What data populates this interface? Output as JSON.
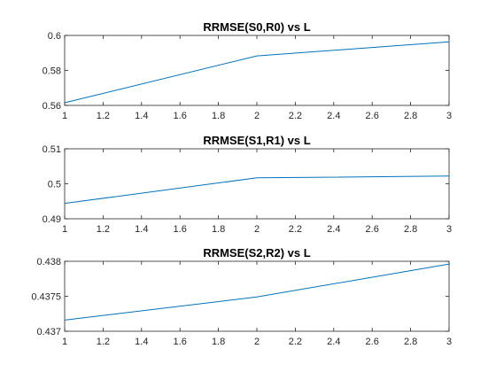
{
  "chart_data": [
    {
      "type": "line",
      "title": "RRMSE(S0,R0) vs L",
      "x": [
        1,
        2,
        3
      ],
      "series": [
        {
          "values": [
            0.5615,
            0.5883,
            0.5963
          ]
        }
      ],
      "xlim": [
        1,
        3
      ],
      "ylim": [
        0.56,
        0.6
      ],
      "xticks": [
        1,
        1.2,
        1.4,
        1.6,
        1.8,
        2,
        2.2,
        2.4,
        2.6,
        2.8,
        3
      ],
      "yticks": [
        0.56,
        0.58,
        0.6
      ],
      "ytick_labels": [
        "0.56",
        "0.58",
        "0.6"
      ],
      "grid": false,
      "line_color": "#0072BD"
    },
    {
      "type": "line",
      "title": "RRMSE(S1,R1) vs L",
      "x": [
        1,
        2,
        3
      ],
      "series": [
        {
          "values": [
            0.4944,
            0.5017,
            0.5022
          ]
        }
      ],
      "xlim": [
        1,
        3
      ],
      "ylim": [
        0.49,
        0.51
      ],
      "xticks": [
        1,
        1.2,
        1.4,
        1.6,
        1.8,
        2,
        2.2,
        2.4,
        2.6,
        2.8,
        3
      ],
      "yticks": [
        0.49,
        0.5,
        0.51
      ],
      "ytick_labels": [
        "0.49",
        "0.5",
        "0.51"
      ],
      "grid": false,
      "line_color": "#0072BD"
    },
    {
      "type": "line",
      "title": "RRMSE(S2,R2) vs L",
      "x": [
        1,
        2,
        3
      ],
      "series": [
        {
          "values": [
            0.43716,
            0.43749,
            0.43796
          ]
        }
      ],
      "xlim": [
        1,
        3
      ],
      "ylim": [
        0.437,
        0.438
      ],
      "xticks": [
        1,
        1.2,
        1.4,
        1.6,
        1.8,
        2,
        2.2,
        2.4,
        2.6,
        2.8,
        3
      ],
      "yticks": [
        0.437,
        0.4375,
        0.438
      ],
      "ytick_labels": [
        "0.437",
        "0.4375",
        "0.438"
      ],
      "grid": false,
      "line_color": "#0072BD"
    }
  ]
}
